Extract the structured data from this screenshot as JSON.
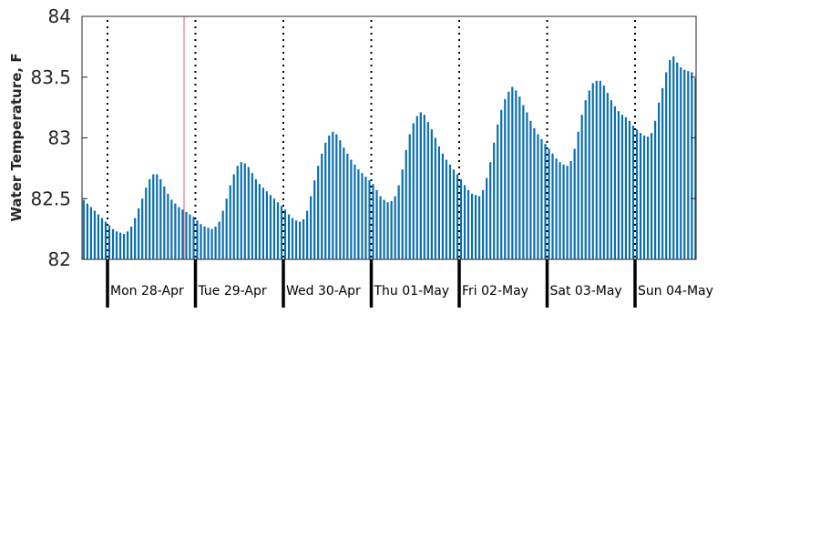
{
  "chart_data": {
    "type": "bar",
    "ylabel": "Water Temperature, F",
    "ylim": [
      82,
      84
    ],
    "yticks": [
      "82",
      "82.5",
      "83",
      "83.5",
      "84"
    ],
    "day_labels": [
      "Mon 28-Apr",
      "Tue 29-Apr",
      "Wed 30-Apr",
      "Thu 01-May",
      "Fri 02-May",
      "Sat 03-May",
      "Sun 04-May"
    ],
    "samples_per_day": 24,
    "start_hour": 17,
    "values": [
      82.49,
      82.46,
      82.43,
      82.4,
      82.37,
      82.34,
      82.31,
      82.28,
      82.25,
      82.23,
      82.22,
      82.21,
      82.23,
      82.27,
      82.34,
      82.42,
      82.5,
      82.59,
      82.66,
      82.7,
      82.7,
      82.66,
      82.6,
      82.54,
      82.49,
      82.46,
      82.43,
      82.41,
      82.39,
      82.37,
      82.35,
      82.32,
      82.29,
      82.27,
      82.26,
      82.25,
      82.27,
      82.31,
      82.4,
      82.5,
      82.61,
      82.7,
      82.77,
      82.8,
      82.79,
      82.76,
      82.71,
      82.66,
      82.62,
      82.59,
      82.56,
      82.53,
      82.5,
      82.47,
      82.44,
      82.41,
      82.37,
      82.34,
      82.32,
      82.31,
      82.33,
      82.4,
      82.52,
      82.65,
      82.77,
      82.87,
      82.96,
      83.02,
      83.05,
      83.03,
      82.98,
      82.92,
      82.87,
      82.82,
      82.78,
      82.74,
      82.71,
      82.68,
      82.65,
      82.62,
      82.57,
      82.52,
      82.49,
      82.47,
      82.48,
      82.52,
      82.61,
      82.74,
      82.9,
      83.03,
      83.12,
      83.18,
      83.21,
      83.19,
      83.13,
      83.07,
      83.0,
      82.93,
      82.87,
      82.82,
      82.78,
      82.74,
      82.7,
      82.66,
      82.61,
      82.57,
      82.54,
      82.53,
      82.52,
      82.57,
      82.67,
      82.8,
      82.96,
      83.11,
      83.23,
      83.32,
      83.38,
      83.42,
      83.39,
      83.34,
      83.27,
      83.21,
      83.14,
      83.08,
      83.03,
      82.99,
      82.95,
      82.91,
      82.87,
      82.83,
      82.8,
      82.78,
      82.77,
      82.81,
      82.91,
      83.05,
      83.19,
      83.31,
      83.39,
      83.45,
      83.47,
      83.47,
      83.43,
      83.37,
      83.31,
      83.26,
      83.22,
      83.19,
      83.17,
      83.14,
      83.1,
      83.07,
      83.04,
      83.02,
      83.01,
      83.04,
      83.14,
      83.29,
      83.41,
      83.54,
      83.64,
      83.67,
      83.62,
      83.58,
      83.56,
      83.55,
      83.54,
      83.49
    ]
  }
}
